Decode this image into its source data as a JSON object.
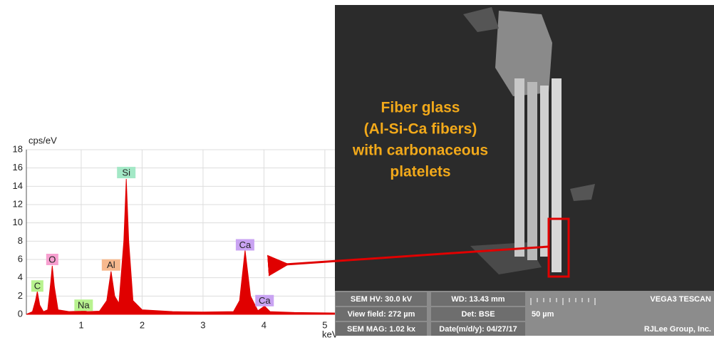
{
  "chart_data": {
    "type": "area",
    "y_label": "cps/eV",
    "x_label": "keV",
    "x": [
      0.1,
      0.2,
      0.25,
      0.28,
      0.32,
      0.38,
      0.45,
      0.5,
      0.525,
      0.56,
      0.62,
      0.8,
      1.0,
      1.04,
      1.1,
      1.3,
      1.42,
      1.49,
      1.55,
      1.62,
      1.7,
      1.74,
      1.78,
      1.85,
      2.0,
      2.5,
      3.0,
      3.5,
      3.6,
      3.69,
      3.78,
      3.9,
      4.01,
      4.1,
      4.5,
      5.2
    ],
    "series": [
      {
        "color": "#e00000",
        "values": [
          0,
          0.3,
          1.5,
          2.5,
          1.0,
          0.3,
          0.5,
          3.5,
          5.3,
          3,
          0.5,
          0.3,
          0.35,
          0.4,
          0.3,
          0.35,
          1.5,
          4.7,
          2,
          1.2,
          8,
          14.8,
          8,
          1.5,
          0.5,
          0.3,
          0.25,
          0.3,
          1.5,
          7.0,
          2,
          0.4,
          0.9,
          0.3,
          0.2,
          0.15
        ]
      }
    ],
    "xlim": [
      0.1,
      5.2
    ],
    "ylim": [
      0,
      18
    ],
    "xticks": [
      1,
      2,
      3,
      4,
      5
    ],
    "yticks": [
      0,
      2,
      4,
      6,
      8,
      10,
      12,
      14,
      16,
      18
    ],
    "grid": true,
    "annotations": [
      {
        "text": "C",
        "x": 0.28,
        "y": 3.1,
        "color": "#b8f28f"
      },
      {
        "text": "O",
        "x": 0.525,
        "y": 6.0,
        "color": "#f7a0d0"
      },
      {
        "text": "Na",
        "x": 1.04,
        "y": 1.0,
        "color": "#b8f28f"
      },
      {
        "text": "Al",
        "x": 1.49,
        "y": 5.4,
        "color": "#f7b98e"
      },
      {
        "text": "Si",
        "x": 1.74,
        "y": 15.5,
        "color": "#a3e8c6"
      },
      {
        "text": "Ca",
        "x": 3.69,
        "y": 7.6,
        "color": "#c9a3f2"
      },
      {
        "text": "Ca",
        "x": 4.01,
        "y": 1.5,
        "color": "#c9a3f2"
      }
    ]
  },
  "sem_image": {
    "caption": [
      "Fiber glass",
      "(Al-Si-Ca fibers)",
      "with carbonaceous",
      "platelets"
    ],
    "info_bar": [
      [
        "SEM HV: 30.0 kV",
        "WD: 13.43 mm",
        "",
        "VEGA3 TESCAN"
      ],
      [
        "View field: 272 µm",
        "Det: BSE",
        "50 µm",
        ""
      ],
      [
        "SEM MAG: 1.02 kx",
        "Date(m/d/y): 04/27/17",
        "",
        "RJLee Group, Inc."
      ]
    ]
  }
}
